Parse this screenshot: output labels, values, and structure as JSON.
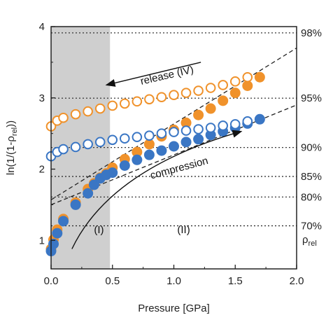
{
  "chart_data": {
    "type": "scatter",
    "xlabel": "Pressure [GPa]",
    "ylabel_main": "ln(1/(1-ρ",
    "ylabel_sub": "rel",
    "ylabel_tail": "))",
    "xlim": [
      0,
      2.0
    ],
    "ylim": [
      0.6,
      4.0
    ],
    "x_ticks": [
      "0.0",
      "0.5",
      "1.0",
      "1.5",
      "2.0"
    ],
    "x_tick_values": [
      0,
      0.5,
      1.0,
      1.5,
      2.0
    ],
    "y_ticks": [
      "1",
      "2",
      "3",
      "4"
    ],
    "y_tick_values": [
      1,
      2,
      3,
      4
    ],
    "shaded_region": {
      "x_from": 0,
      "x_to": 0.48,
      "color": "#cfcfcf"
    },
    "density_lines": [
      {
        "label": "98%",
        "y": 3.912
      },
      {
        "label": "95%",
        "y": 2.996
      },
      {
        "label": "90%",
        "y": 2.303
      },
      {
        "label": "85%",
        "y": 1.897
      },
      {
        "label": "80%",
        "y": 1.609
      },
      {
        "label": "70%",
        "y": 1.204
      }
    ],
    "right_axis_label_main": "ρ",
    "right_axis_label_sub": "rel",
    "series": [
      {
        "color": "#f0922b",
        "filled": true,
        "x": [
          0.0,
          0.02,
          0.05,
          0.1,
          0.2,
          0.3,
          0.35,
          0.4,
          0.45,
          0.5,
          0.6,
          0.7,
          0.8,
          0.9,
          1.0,
          1.1,
          1.2,
          1.3,
          1.4,
          1.5,
          1.6,
          1.7
        ],
        "values": [
          0.88,
          1.01,
          1.15,
          1.3,
          1.53,
          1.72,
          1.8,
          1.88,
          1.94,
          2.02,
          2.14,
          2.24,
          2.35,
          2.46,
          2.55,
          2.65,
          2.76,
          2.85,
          2.96,
          3.07,
          3.17,
          3.29
        ]
      },
      {
        "color": "#f0922b",
        "filled": false,
        "x": [
          0.0,
          0.05,
          0.1,
          0.2,
          0.3,
          0.4,
          0.5,
          0.6,
          0.7,
          0.8,
          0.9,
          1.0,
          1.1,
          1.2,
          1.3,
          1.4,
          1.5,
          1.6
        ],
        "values": [
          2.6,
          2.68,
          2.72,
          2.77,
          2.81,
          2.85,
          2.89,
          2.92,
          2.95,
          2.98,
          3.01,
          3.04,
          3.07,
          3.1,
          3.14,
          3.18,
          3.23,
          3.29
        ]
      },
      {
        "color": "#3a76c4",
        "filled": true,
        "x": [
          0.0,
          0.02,
          0.05,
          0.1,
          0.2,
          0.3,
          0.35,
          0.4,
          0.45,
          0.5,
          0.6,
          0.7,
          0.8,
          0.9,
          1.0,
          1.1,
          1.2,
          1.3,
          1.4,
          1.5,
          1.6,
          1.7
        ],
        "values": [
          0.85,
          0.95,
          1.1,
          1.27,
          1.5,
          1.66,
          1.78,
          1.87,
          1.92,
          1.95,
          2.05,
          2.13,
          2.2,
          2.26,
          2.32,
          2.38,
          2.42,
          2.48,
          2.53,
          2.58,
          2.64,
          2.7
        ]
      },
      {
        "color": "#3a76c4",
        "filled": false,
        "x": [
          0.0,
          0.05,
          0.1,
          0.2,
          0.3,
          0.4,
          0.5,
          0.6,
          0.7,
          0.8,
          0.9,
          1.0,
          1.1,
          1.2,
          1.3,
          1.4,
          1.5,
          1.6
        ],
        "values": [
          2.18,
          2.24,
          2.28,
          2.31,
          2.35,
          2.38,
          2.41,
          2.43,
          2.45,
          2.47,
          2.5,
          2.52,
          2.54,
          2.56,
          2.58,
          2.61,
          2.63,
          2.67
        ]
      }
    ],
    "trend_lines": [
      {
        "color": "#222",
        "x": [
          0.0,
          2.0
        ],
        "y": [
          1.57,
          3.7
        ]
      },
      {
        "color": "#222",
        "x": [
          0.0,
          2.0
        ],
        "y": [
          1.5,
          2.9
        ]
      }
    ],
    "annotations": [
      {
        "text": "release (IV)",
        "x": 0.95,
        "y": 3.27,
        "rotate": -13
      },
      {
        "text": "compression",
        "x": 1.05,
        "y": 1.97,
        "rotate": -15
      },
      {
        "text": "(I)",
        "x": 0.39,
        "y": 1.1,
        "rotate": 0
      },
      {
        "text": "(II)",
        "x": 1.08,
        "y": 1.1,
        "rotate": 0
      }
    ]
  }
}
